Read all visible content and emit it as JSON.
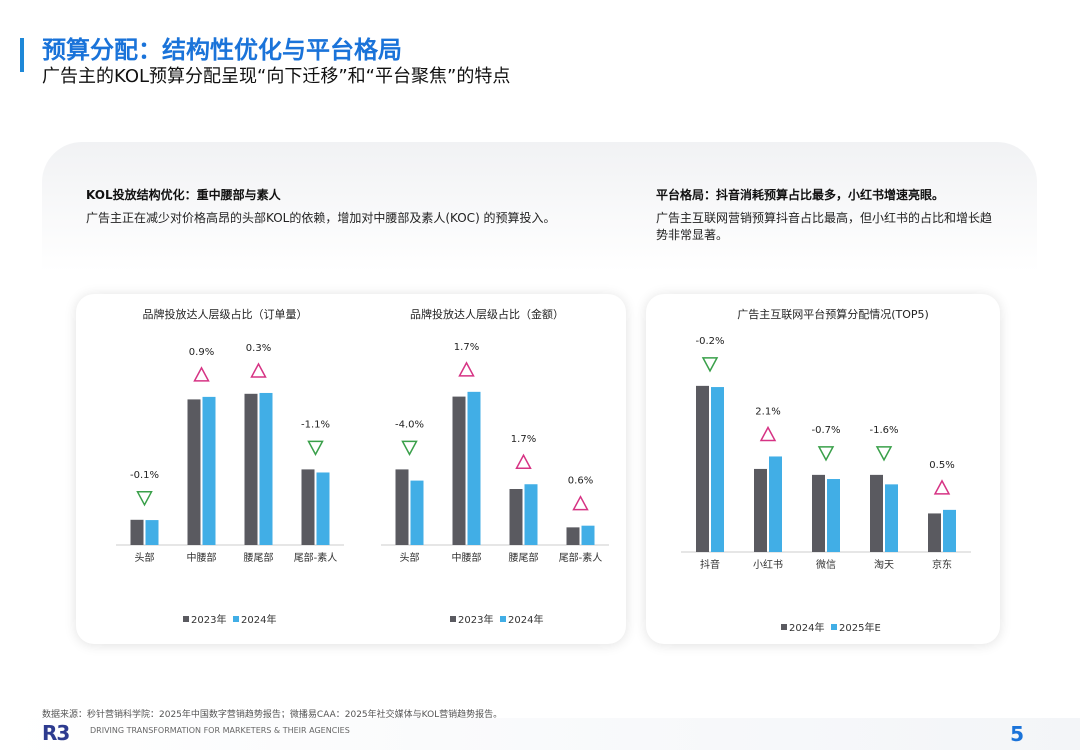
{
  "header": {
    "title": "预算分配：结构性优化与平台格局",
    "subtitle": "广告主的KOL预算分配呈现“向下迁移”和“平台聚焦”的特点"
  },
  "sections": {
    "left": {
      "heading": "KOL投放结构优化：重中腰部与素人",
      "desc": "广告主正在减少对价格高昂的头部KOL的依赖，增加对中腰部及素人(KOC) 的预算投入。"
    },
    "right": {
      "heading": "平台格局：抖音消耗预算占比最多，小红书增速亮眼。",
      "desc": "广告主互联网营销预算抖音占比最高，但小红书的占比和增长趋势非常显著。"
    }
  },
  "colors": {
    "dark": "#5a5a60",
    "light": "#41aee6",
    "up": "#d63384",
    "down": "#3aa04a",
    "accent": "#1a73d9"
  },
  "chart_data": [
    {
      "type": "bar",
      "title": "品牌投放达人层级占比（订单量）",
      "categories": [
        "头部",
        "中腰部",
        "腰尾部",
        "尾部-素人"
      ],
      "series": [
        {
          "name": "2023年",
          "values": [
            9,
            52,
            54,
            27
          ]
        },
        {
          "name": "2024年",
          "values": [
            8.9,
            52.9,
            54.3,
            25.9
          ]
        }
      ],
      "change_labels": [
        "-0.1%",
        "0.9%",
        "0.3%",
        "-1.1%"
      ],
      "change_direction": [
        "down",
        "up",
        "up",
        "down"
      ],
      "ylim": [
        0,
        60
      ],
      "legend": "bottom"
    },
    {
      "type": "bar",
      "title": "品牌投放达人层级占比（金额）",
      "categories": [
        "头部",
        "中腰部",
        "腰尾部",
        "尾部-素人"
      ],
      "series": [
        {
          "name": "2023年",
          "values": [
            27,
            53,
            20,
            6.3
          ]
        },
        {
          "name": "2024年",
          "values": [
            23,
            54.7,
            21.7,
            6.9
          ]
        }
      ],
      "change_labels": [
        "-4.0%",
        "1.7%",
        "1.7%",
        "0.6%"
      ],
      "change_direction": [
        "down",
        "up",
        "up",
        "up"
      ],
      "ylim": [
        0,
        60
      ],
      "legend": "bottom"
    },
    {
      "type": "bar",
      "title": "广告主互联网平台预算分配情况(TOP5)",
      "categories": [
        "抖音",
        "小红书",
        "微信",
        "淘天",
        "京东"
      ],
      "series": [
        {
          "name": "2024年",
          "values": [
            28,
            14,
            13,
            13,
            6.5
          ]
        },
        {
          "name": "2025年E",
          "values": [
            27.8,
            16.1,
            12.3,
            11.4,
            7.1
          ]
        }
      ],
      "change_labels": [
        "-0.2%",
        "2.1%",
        "-0.7%",
        "-1.6%",
        "0.5%"
      ],
      "change_direction": [
        "down",
        "up",
        "down",
        "down",
        "up"
      ],
      "ylim": [
        0,
        30
      ],
      "legend": "bottom"
    }
  ],
  "footer": {
    "source": "数据来源：秒针营销科学院：2025年中国数字营销趋势报告；微播易CAA：2025年社交媒体与KOL营销趋势报告。",
    "logo": "R3",
    "tagline": "DRIVING TRANSFORMATION FOR MARKETERS & THEIR AGENCIES",
    "page": "5"
  }
}
